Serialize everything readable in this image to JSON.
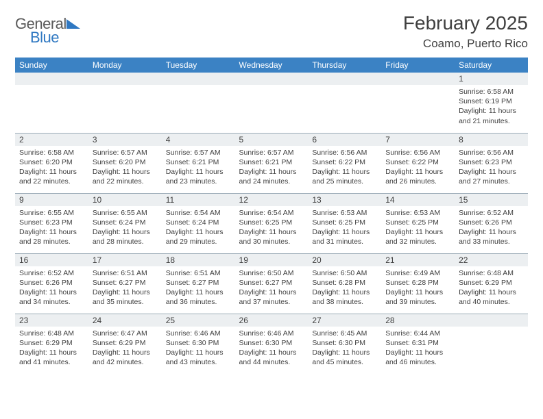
{
  "logo": {
    "line1": "General",
    "line2": "Blue"
  },
  "title": "February 2025",
  "location": "Coamo, Puerto Rico",
  "colors": {
    "header_bg": "#3b82c4",
    "header_text": "#ffffff",
    "daynum_bg": "#eceff1",
    "border": "#9aaab6",
    "body_text": "#404040",
    "logo_gray": "#5a5a5a",
    "logo_blue": "#2f78c2"
  },
  "weekdays": [
    "Sunday",
    "Monday",
    "Tuesday",
    "Wednesday",
    "Thursday",
    "Friday",
    "Saturday"
  ],
  "weeks": [
    [
      {
        "empty": true
      },
      {
        "empty": true
      },
      {
        "empty": true
      },
      {
        "empty": true
      },
      {
        "empty": true
      },
      {
        "empty": true
      },
      {
        "n": "1",
        "sunrise": "Sunrise: 6:58 AM",
        "sunset": "Sunset: 6:19 PM",
        "daylight": "Daylight: 11 hours and 21 minutes."
      }
    ],
    [
      {
        "n": "2",
        "sunrise": "Sunrise: 6:58 AM",
        "sunset": "Sunset: 6:20 PM",
        "daylight": "Daylight: 11 hours and 22 minutes."
      },
      {
        "n": "3",
        "sunrise": "Sunrise: 6:57 AM",
        "sunset": "Sunset: 6:20 PM",
        "daylight": "Daylight: 11 hours and 22 minutes."
      },
      {
        "n": "4",
        "sunrise": "Sunrise: 6:57 AM",
        "sunset": "Sunset: 6:21 PM",
        "daylight": "Daylight: 11 hours and 23 minutes."
      },
      {
        "n": "5",
        "sunrise": "Sunrise: 6:57 AM",
        "sunset": "Sunset: 6:21 PM",
        "daylight": "Daylight: 11 hours and 24 minutes."
      },
      {
        "n": "6",
        "sunrise": "Sunrise: 6:56 AM",
        "sunset": "Sunset: 6:22 PM",
        "daylight": "Daylight: 11 hours and 25 minutes."
      },
      {
        "n": "7",
        "sunrise": "Sunrise: 6:56 AM",
        "sunset": "Sunset: 6:22 PM",
        "daylight": "Daylight: 11 hours and 26 minutes."
      },
      {
        "n": "8",
        "sunrise": "Sunrise: 6:56 AM",
        "sunset": "Sunset: 6:23 PM",
        "daylight": "Daylight: 11 hours and 27 minutes."
      }
    ],
    [
      {
        "n": "9",
        "sunrise": "Sunrise: 6:55 AM",
        "sunset": "Sunset: 6:23 PM",
        "daylight": "Daylight: 11 hours and 28 minutes."
      },
      {
        "n": "10",
        "sunrise": "Sunrise: 6:55 AM",
        "sunset": "Sunset: 6:24 PM",
        "daylight": "Daylight: 11 hours and 28 minutes."
      },
      {
        "n": "11",
        "sunrise": "Sunrise: 6:54 AM",
        "sunset": "Sunset: 6:24 PM",
        "daylight": "Daylight: 11 hours and 29 minutes."
      },
      {
        "n": "12",
        "sunrise": "Sunrise: 6:54 AM",
        "sunset": "Sunset: 6:25 PM",
        "daylight": "Daylight: 11 hours and 30 minutes."
      },
      {
        "n": "13",
        "sunrise": "Sunrise: 6:53 AM",
        "sunset": "Sunset: 6:25 PM",
        "daylight": "Daylight: 11 hours and 31 minutes."
      },
      {
        "n": "14",
        "sunrise": "Sunrise: 6:53 AM",
        "sunset": "Sunset: 6:25 PM",
        "daylight": "Daylight: 11 hours and 32 minutes."
      },
      {
        "n": "15",
        "sunrise": "Sunrise: 6:52 AM",
        "sunset": "Sunset: 6:26 PM",
        "daylight": "Daylight: 11 hours and 33 minutes."
      }
    ],
    [
      {
        "n": "16",
        "sunrise": "Sunrise: 6:52 AM",
        "sunset": "Sunset: 6:26 PM",
        "daylight": "Daylight: 11 hours and 34 minutes."
      },
      {
        "n": "17",
        "sunrise": "Sunrise: 6:51 AM",
        "sunset": "Sunset: 6:27 PM",
        "daylight": "Daylight: 11 hours and 35 minutes."
      },
      {
        "n": "18",
        "sunrise": "Sunrise: 6:51 AM",
        "sunset": "Sunset: 6:27 PM",
        "daylight": "Daylight: 11 hours and 36 minutes."
      },
      {
        "n": "19",
        "sunrise": "Sunrise: 6:50 AM",
        "sunset": "Sunset: 6:27 PM",
        "daylight": "Daylight: 11 hours and 37 minutes."
      },
      {
        "n": "20",
        "sunrise": "Sunrise: 6:50 AM",
        "sunset": "Sunset: 6:28 PM",
        "daylight": "Daylight: 11 hours and 38 minutes."
      },
      {
        "n": "21",
        "sunrise": "Sunrise: 6:49 AM",
        "sunset": "Sunset: 6:28 PM",
        "daylight": "Daylight: 11 hours and 39 minutes."
      },
      {
        "n": "22",
        "sunrise": "Sunrise: 6:48 AM",
        "sunset": "Sunset: 6:29 PM",
        "daylight": "Daylight: 11 hours and 40 minutes."
      }
    ],
    [
      {
        "n": "23",
        "sunrise": "Sunrise: 6:48 AM",
        "sunset": "Sunset: 6:29 PM",
        "daylight": "Daylight: 11 hours and 41 minutes."
      },
      {
        "n": "24",
        "sunrise": "Sunrise: 6:47 AM",
        "sunset": "Sunset: 6:29 PM",
        "daylight": "Daylight: 11 hours and 42 minutes."
      },
      {
        "n": "25",
        "sunrise": "Sunrise: 6:46 AM",
        "sunset": "Sunset: 6:30 PM",
        "daylight": "Daylight: 11 hours and 43 minutes."
      },
      {
        "n": "26",
        "sunrise": "Sunrise: 6:46 AM",
        "sunset": "Sunset: 6:30 PM",
        "daylight": "Daylight: 11 hours and 44 minutes."
      },
      {
        "n": "27",
        "sunrise": "Sunrise: 6:45 AM",
        "sunset": "Sunset: 6:30 PM",
        "daylight": "Daylight: 11 hours and 45 minutes."
      },
      {
        "n": "28",
        "sunrise": "Sunrise: 6:44 AM",
        "sunset": "Sunset: 6:31 PM",
        "daylight": "Daylight: 11 hours and 46 minutes."
      },
      {
        "empty": true
      }
    ]
  ]
}
